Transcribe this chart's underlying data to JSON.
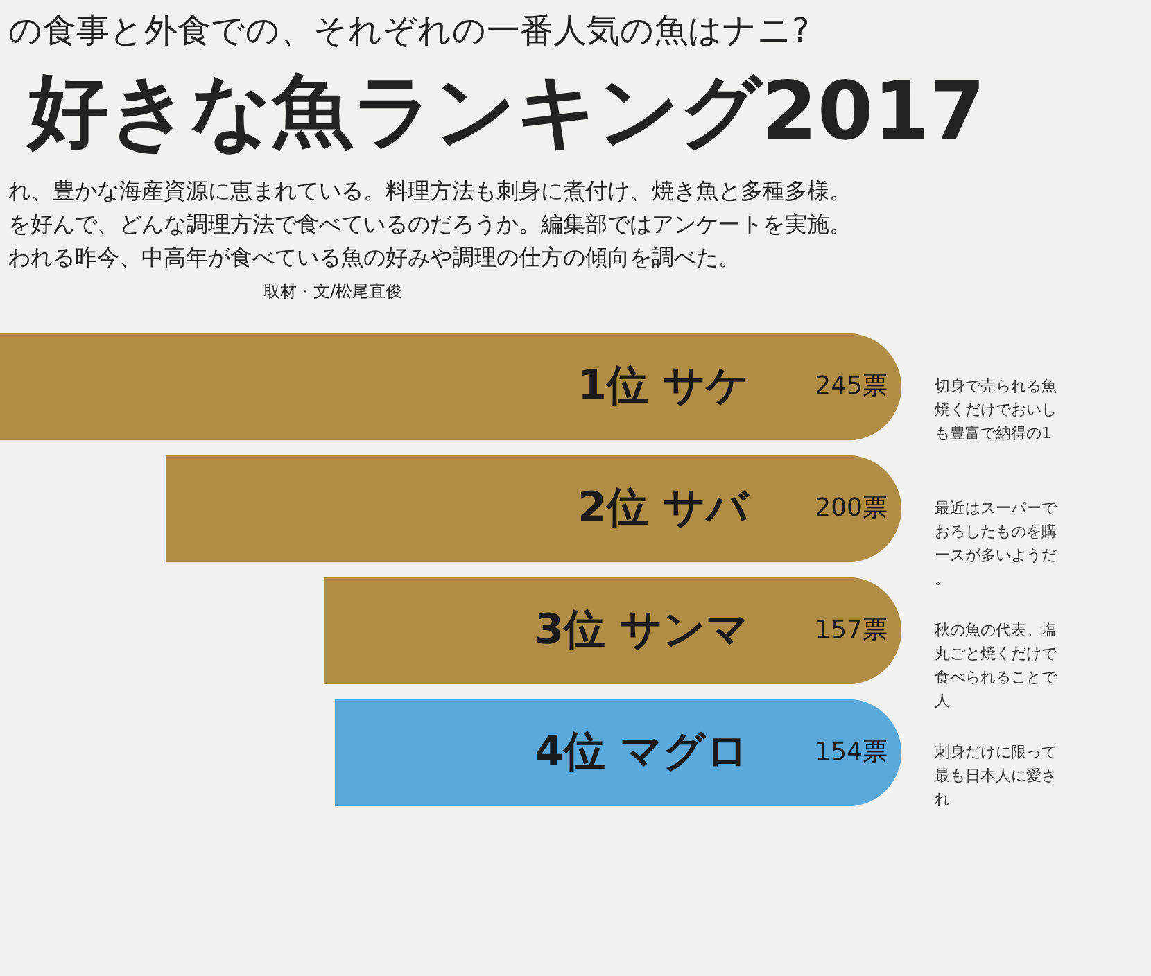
{
  "chart_data": {
    "type": "bar",
    "orientation": "horizontal",
    "subtitle": "の食事と外食での、それぞれの一番人気の魚はナニ?",
    "title": "好きな魚ランキング2017",
    "categories": [
      "1位 サケ",
      "2位 サバ",
      "3位 サンマ",
      "4位 マグロ"
    ],
    "values": [
      245,
      200,
      157,
      154
    ],
    "value_labels": [
      "245票",
      "200票",
      "157票",
      "154票"
    ],
    "colors": [
      "#b08c45",
      "#b08c45",
      "#b08c45",
      "#5aa9dc"
    ],
    "annotations": [
      "れ、豊かな海産資源に恵まれている。料理方法も刺身に煮付け、焼き魚と多種多様。",
      "を好んで、どんな調理方法で食べているのだろうか。編集部ではアンケートを実施。",
      "われる昨今、中高年が食べている魚の好みや調理の仕方の傾向を調べた。",
      "取材・文/松尾直俊",
      "切身で売られる魚焼くだけでおいしも豊富で納得の1",
      "最近はスーパーでおろしたものを購ースが多いようだ。",
      "秋の魚の代表。塩丸ごと焼くだけで食べられることで人",
      "刺身だけに限って最も日本人に愛され"
    ]
  }
}
